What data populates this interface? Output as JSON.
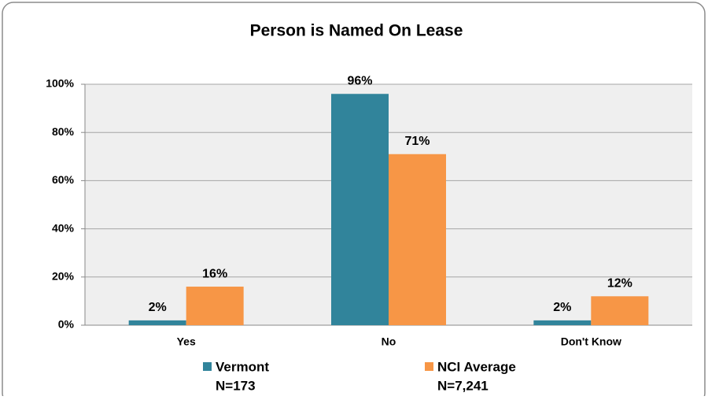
{
  "chart_data": {
    "type": "bar",
    "title": "Person is Named On Lease",
    "categories": [
      "Yes",
      "No",
      "Don't Know"
    ],
    "series": [
      {
        "name": "Vermont",
        "sample_size": "N=173",
        "color": "#31849b",
        "values": [
          2,
          96,
          2
        ],
        "value_labels": [
          "2%",
          "96%",
          "2%"
        ]
      },
      {
        "name": "NCI Average",
        "sample_size": "N=7,241",
        "color": "#f79646",
        "values": [
          16,
          71,
          12
        ],
        "value_labels": [
          "16%",
          "71%",
          "12%"
        ]
      }
    ],
    "ylim": [
      0,
      100
    ],
    "yticks": [
      {
        "value": 0,
        "label": "0%"
      },
      {
        "value": 20,
        "label": "20%"
      },
      {
        "value": 40,
        "label": "40%"
      },
      {
        "value": 60,
        "label": "60%"
      },
      {
        "value": 80,
        "label": "80%"
      },
      {
        "value": 100,
        "label": "100%"
      }
    ],
    "grid": true,
    "legend": "bottom"
  }
}
